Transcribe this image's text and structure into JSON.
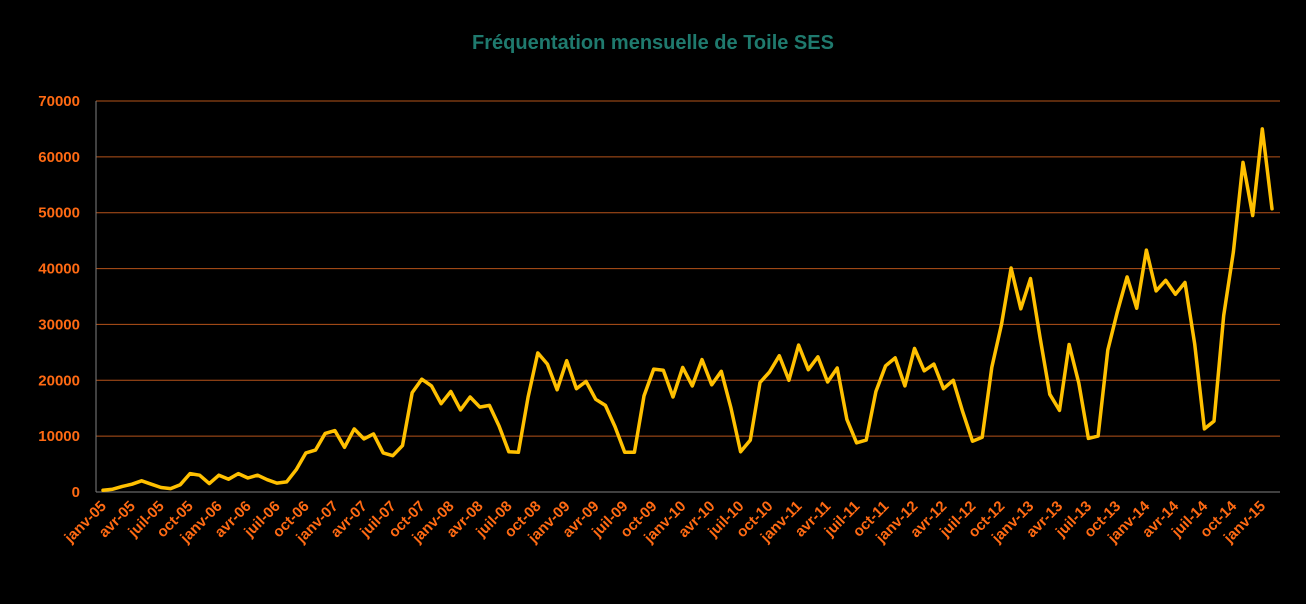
{
  "chart_data": {
    "type": "line",
    "title": "Fréquentation mensuelle de Toile SES",
    "xlabel": "",
    "ylabel": "",
    "ylim": [
      0,
      70000
    ],
    "yticks": [
      0,
      10000,
      20000,
      30000,
      40000,
      50000,
      60000,
      70000
    ],
    "grid": true,
    "legend": "none",
    "x_tick_labels": [
      "janv-05",
      "avr-05",
      "juil-05",
      "oct-05",
      "janv-06",
      "avr-06",
      "juil-06",
      "oct-06",
      "janv-07",
      "avr-07",
      "juil-07",
      "oct-07",
      "janv-08",
      "avr-08",
      "juil-08",
      "oct-08",
      "janv-09",
      "avr-09",
      "juil-09",
      "oct-09",
      "janv-10",
      "avr-10",
      "juil-10",
      "oct-10",
      "janv-11",
      "avr-11",
      "juil-11",
      "oct-11",
      "janv-12",
      "avr-12",
      "juil-12",
      "oct-12",
      "janv-13",
      "avr-13",
      "juil-13",
      "oct-13",
      "janv-14",
      "avr-14",
      "juil-14",
      "oct-14",
      "janv-15"
    ],
    "x_start": "janv-05",
    "x_step": "month",
    "colors": {
      "line": "#ffc000",
      "gridline": "#b5531a",
      "tick_text": "#ff6a13",
      "title": "#1f7a6e",
      "background": "#000000"
    },
    "series": [
      {
        "values": [
          300,
          500,
          1000,
          1400,
          2000,
          1400,
          800,
          600,
          1300,
          3300,
          3000,
          1500,
          3000,
          2300,
          3300,
          2500,
          3000,
          2200,
          1600,
          1800,
          4000,
          7000,
          7500,
          10500,
          11000,
          8000,
          11300,
          9500,
          10400,
          7000,
          6500,
          8300,
          17800,
          20200,
          19000,
          15800,
          18000,
          14700,
          17000,
          15200,
          15500,
          11800,
          7200,
          7100,
          17000,
          24900,
          22900,
          18300,
          23500,
          18500,
          19800,
          16600,
          15500,
          11700,
          7100,
          7100,
          17200,
          22000,
          21800,
          17000,
          22300,
          19000,
          23700,
          19200,
          21600,
          15000,
          7200,
          9300,
          19600,
          21500,
          24400,
          20000,
          26300,
          21900,
          24200,
          19700,
          22200,
          13000,
          8800,
          9300,
          18000,
          22600,
          24000,
          19000,
          25700,
          21700,
          22900,
          18500,
          20000,
          14300,
          9100,
          9800,
          22300,
          30000,
          40100,
          32800,
          38200,
          27600,
          17500,
          14600,
          26400,
          19500,
          9600,
          10000,
          25400,
          32300,
          38500,
          32900,
          43300,
          36000,
          37900,
          35400,
          37500,
          26500,
          11300,
          12700,
          31600,
          43000,
          59000,
          49500,
          65000,
          50700
        ]
      }
    ]
  }
}
